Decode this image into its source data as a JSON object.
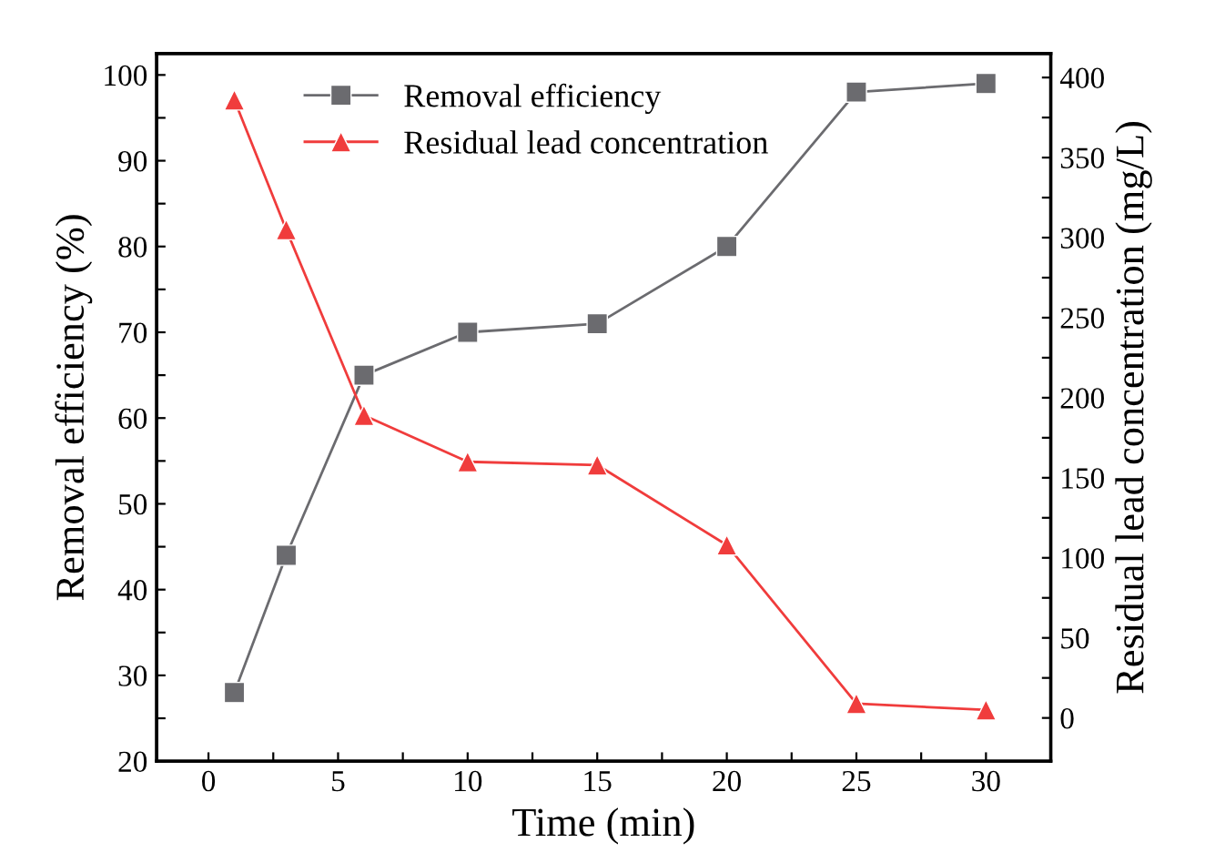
{
  "chart_data": {
    "type": "line",
    "xlabel": "Time (min)",
    "ylabel": "Removal efficiency (%)",
    "y2label": "Residual lead concentration (mg/L)",
    "x": [
      1,
      3,
      6,
      10,
      15,
      20,
      25,
      30
    ],
    "series": [
      {
        "name": "Removal efficiency",
        "color": "#6b6b6f",
        "marker": "square",
        "values": [
          28,
          44,
          65,
          70,
          71,
          80,
          98,
          99
        ]
      },
      {
        "name": "Residual lead concentration",
        "color": "#f03c3c",
        "marker": "triangle",
        "axis": "y2",
        "values": [
          386,
          305,
          189,
          160,
          158,
          108,
          9,
          5
        ]
      }
    ],
    "xlim": [
      -2,
      32.5
    ],
    "xticks": [
      0,
      {
        "value": 2.5,
        "label": null
      },
      5,
      {
        "value": 7.5,
        "label": null
      },
      10,
      {
        "value": 12.5,
        "label": null
      },
      15,
      {
        "value": 17.5,
        "label": null
      },
      20,
      {
        "value": 22.5,
        "label": null
      },
      25,
      {
        "value": 27.5,
        "label": null
      },
      30
    ],
    "ylim": [
      20,
      102.5
    ],
    "yticks": [
      20,
      {
        "value": 25,
        "label": null
      },
      30,
      {
        "value": 35,
        "label": null
      },
      40,
      {
        "value": 45,
        "label": null
      },
      50,
      {
        "value": 55,
        "label": null
      },
      60,
      {
        "value": 65,
        "label": null
      },
      70,
      {
        "value": 75,
        "label": null
      },
      80,
      {
        "value": 85,
        "label": null
      },
      90,
      {
        "value": 95,
        "label": null
      },
      100
    ],
    "y2lim": [
      -27,
      415
    ],
    "y2ticks": [
      0,
      {
        "value": 25,
        "label": null
      },
      50,
      {
        "value": 75,
        "label": null
      },
      100,
      {
        "value": 125,
        "label": null
      },
      150,
      {
        "value": 175,
        "label": null
      },
      200,
      {
        "value": 225,
        "label": null
      },
      250,
      {
        "value": 275,
        "label": null
      },
      300,
      {
        "value": 325,
        "label": null
      },
      350,
      {
        "value": 375,
        "label": null
      },
      400
    ],
    "legend": "top",
    "grid": false,
    "line_style": "solid"
  }
}
